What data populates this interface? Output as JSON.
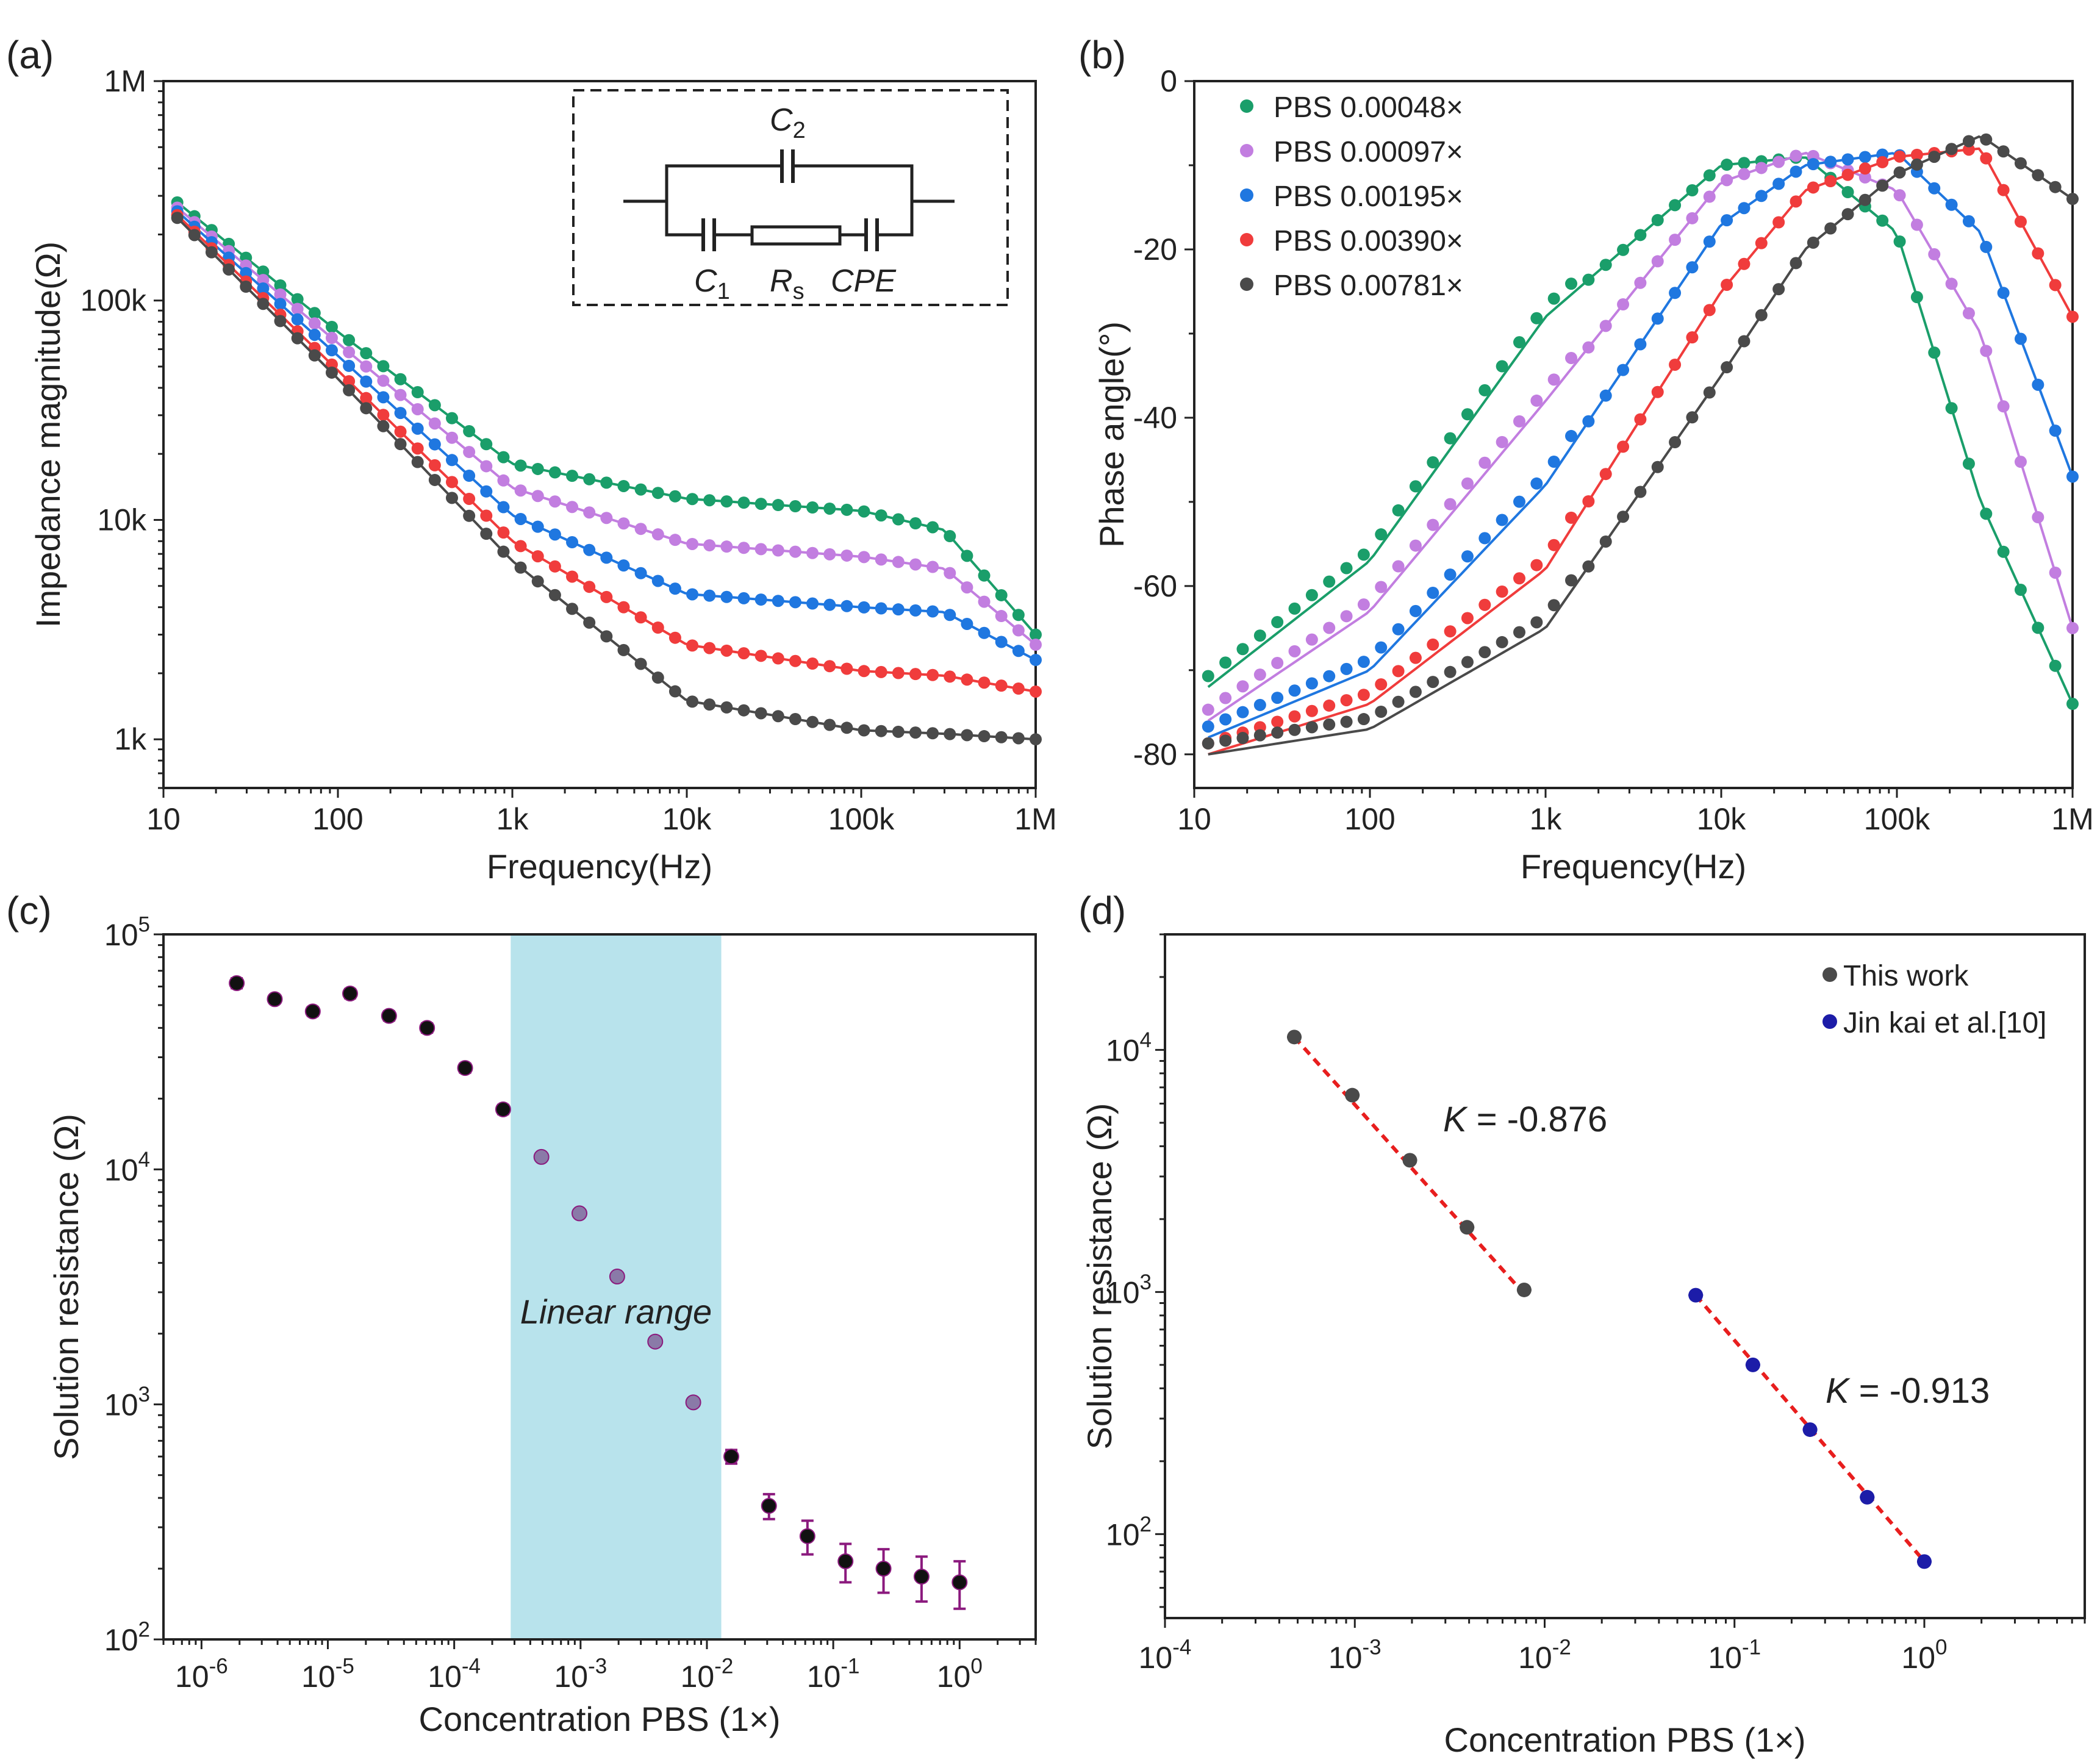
{
  "panel_labels": {
    "a": "(a)",
    "b": "(b)",
    "c": "(c)",
    "d": "(d)"
  },
  "colors": {
    "green": "#1a9e6a",
    "purple": "#c27ee0",
    "blue": "#1f77e0",
    "red": "#f03c3c",
    "dark": "#4a4a4a",
    "black": "#111111",
    "magenta": "#8b1a7e",
    "band": "#b8e3ec",
    "navy": "#1c1ca8",
    "fit_red": "#e81e1e"
  },
  "chart_data": [
    {
      "panel": "a",
      "type": "scatter",
      "title": "",
      "xlabel": "Frequency(Hz)",
      "ylabel": "Impedance magnitude(Ω)",
      "xscale": "log",
      "yscale": "log",
      "xlim": [
        10,
        1000000
      ],
      "ylim": [
        600,
        1000000
      ],
      "xticks": [
        10,
        100,
        1000,
        10000,
        100000,
        1000000
      ],
      "xtick_labels": [
        "10",
        "100",
        "1k",
        "10k",
        "100k",
        "1M"
      ],
      "yticks": [
        1000,
        10000,
        100000,
        1000000
      ],
      "ytick_labels": [
        "1k",
        "10k",
        "100k",
        "1M"
      ],
      "inset": {
        "c2": "C",
        "c2_sub": "2",
        "c1": "C",
        "c1_sub": "1",
        "rs": "R",
        "rs_sub": "s",
        "cpe": "CPE"
      },
      "series": [
        {
          "name": "PBS 0.00048×",
          "color": "#1a9e6a",
          "x": [
            12,
            100,
            1000,
            10000,
            100000,
            300000,
            1000000
          ],
          "y": [
            280000,
            72000,
            18000,
            12500,
            11000,
            9000,
            3000
          ]
        },
        {
          "name": "PBS 0.00097×",
          "color": "#c27ee0",
          "x": [
            12,
            100,
            1000,
            10000,
            100000,
            300000,
            1000000
          ],
          "y": [
            265000,
            64000,
            14000,
            7800,
            6800,
            6000,
            2700
          ]
        },
        {
          "name": "PBS 0.00195×",
          "color": "#1f77e0",
          "x": [
            12,
            100,
            1000,
            10000,
            100000,
            300000,
            1000000
          ],
          "y": [
            255000,
            56000,
            10500,
            4600,
            4000,
            3800,
            2300
          ]
        },
        {
          "name": "PBS 0.00390×",
          "color": "#f03c3c",
          "x": [
            12,
            100,
            1000,
            10000,
            100000,
            300000,
            1000000
          ],
          "y": [
            245000,
            48000,
            8000,
            2700,
            2050,
            1950,
            1650
          ]
        },
        {
          "name": "PBS 0.00781×",
          "color": "#4a4a4a",
          "x": [
            12,
            100,
            1000,
            10000,
            100000,
            300000,
            1000000
          ],
          "y": [
            238000,
            44000,
            6500,
            1500,
            1100,
            1060,
            1000
          ]
        }
      ]
    },
    {
      "panel": "b",
      "type": "scatter",
      "title": "",
      "xlabel": "Frequency(Hz)",
      "ylabel": "Phase angle(°)",
      "xscale": "log",
      "yscale": "linear",
      "xlim": [
        10,
        1000000
      ],
      "ylim": [
        -84,
        0
      ],
      "xticks": [
        10,
        100,
        1000,
        10000,
        100000,
        1000000
      ],
      "xtick_labels": [
        "10",
        "100",
        "1k",
        "10k",
        "100k",
        "1M"
      ],
      "yticks": [
        0,
        -20,
        -40,
        -60,
        -80
      ],
      "ytick_labels": [
        "0",
        "-20",
        "-40",
        "-60",
        "-80"
      ],
      "series": [
        {
          "name": "PBS 0.00048×",
          "color": "#1a9e6a",
          "x": [
            12,
            100,
            1000,
            10000,
            30000,
            100000,
            300000,
            1000000
          ],
          "y": [
            -72,
            -57,
            -28,
            -10,
            -9,
            -18,
            -50,
            -74
          ]
        },
        {
          "name": "PBS 0.00097×",
          "color": "#c27ee0",
          "x": [
            12,
            100,
            1000,
            10000,
            30000,
            100000,
            300000,
            1000000
          ],
          "y": [
            -76,
            -63,
            -38,
            -12,
            -8.5,
            -13,
            -30,
            -65
          ]
        },
        {
          "name": "PBS 0.00195×",
          "color": "#1f77e0",
          "x": [
            12,
            100,
            1000,
            10000,
            30000,
            100000,
            300000,
            1000000
          ],
          "y": [
            -78,
            -70,
            -48,
            -17,
            -10,
            -8.5,
            -18,
            -47
          ]
        },
        {
          "name": "PBS 0.00390×",
          "color": "#f03c3c",
          "x": [
            12,
            100,
            1000,
            10000,
            30000,
            100000,
            300000,
            1000000
          ],
          "y": [
            -80,
            -74,
            -58,
            -25,
            -13,
            -9,
            -8,
            -28
          ]
        },
        {
          "name": "PBS 0.00781×",
          "color": "#4a4a4a",
          "x": [
            12,
            100,
            1000,
            10000,
            30000,
            100000,
            300000,
            1000000
          ],
          "y": [
            -80,
            -77,
            -65,
            -35,
            -20,
            -11,
            -6.5,
            -14
          ]
        }
      ]
    },
    {
      "panel": "c",
      "type": "scatter",
      "title": "",
      "xlabel": "Concentration PBS (1×)",
      "ylabel": "Solution resistance (Ω)",
      "xscale": "log",
      "yscale": "log",
      "xlim": [
        5e-07,
        4
      ],
      "ylim": [
        100,
        100000
      ],
      "xtick_base": [
        "10",
        "10",
        "10",
        "10",
        "10",
        "10",
        "10"
      ],
      "xtick_exp": [
        "-6",
        "-5",
        "-4",
        "-3",
        "-2",
        "-1",
        "0"
      ],
      "ytick_base": [
        "10",
        "10",
        "10",
        "10"
      ],
      "ytick_exp": [
        "2",
        "3",
        "4",
        "5"
      ],
      "band": {
        "x0": 0.00028,
        "x1": 0.013,
        "label": "Linear range"
      },
      "series": [
        {
          "name": "Solution resistance",
          "color": "#111111",
          "x": [
            1.9e-06,
            3.8e-06,
            7.6e-06,
            1.5e-05,
            3.05e-05,
            6.1e-05,
            0.000122,
            0.000244,
            0.00049,
            0.00098,
            0.00195,
            0.0039,
            0.0078,
            0.0156,
            0.031,
            0.0625,
            0.125,
            0.25,
            0.5,
            1.0
          ],
          "y": [
            62000,
            53000,
            47000,
            56000,
            45000,
            40000,
            27000,
            18000,
            11300,
            6500,
            3500,
            1850,
            1020,
            600,
            370,
            275,
            215,
            200,
            185,
            175
          ],
          "err": [
            3000,
            2000,
            2000,
            2500,
            2000,
            1800,
            1200,
            800,
            300,
            150,
            100,
            60,
            30,
            40,
            45,
            45,
            40,
            42,
            40,
            40
          ]
        }
      ]
    },
    {
      "panel": "d",
      "type": "scatter",
      "title": "",
      "xlabel": "Concentration PBS (1×)",
      "ylabel": "Solution resistance (Ω)",
      "xscale": "log",
      "yscale": "log",
      "xlim": [
        0.0001,
        7
      ],
      "ylim": [
        45,
        30000
      ],
      "xtick_base": [
        "10",
        "10",
        "10",
        "10",
        "10"
      ],
      "xtick_exp": [
        "-4",
        "-3",
        "-2",
        "-1",
        "0"
      ],
      "ytick_base": [
        "10",
        "10",
        "10"
      ],
      "ytick_exp": [
        "2",
        "3",
        "4"
      ],
      "legend_position": "top-right",
      "series": [
        {
          "name": "This work",
          "color": "#4a4a4a",
          "x": [
            0.00048,
            0.00097,
            0.00195,
            0.0039,
            0.0078
          ],
          "y": [
            11300,
            6500,
            3500,
            1850,
            1020
          ],
          "fit_slope_label_italic": "K",
          "fit_slope_label": " = -0.876",
          "slope": -0.876
        },
        {
          "name": "Jin kai et al.[10]",
          "color": "#1c1ca8",
          "x": [
            0.0625,
            0.125,
            0.25,
            0.5,
            1.0
          ],
          "y": [
            970,
            500,
            270,
            142,
            77
          ],
          "fit_slope_label_italic": "K",
          "fit_slope_label": " = -0.913",
          "slope": -0.913
        }
      ]
    }
  ]
}
